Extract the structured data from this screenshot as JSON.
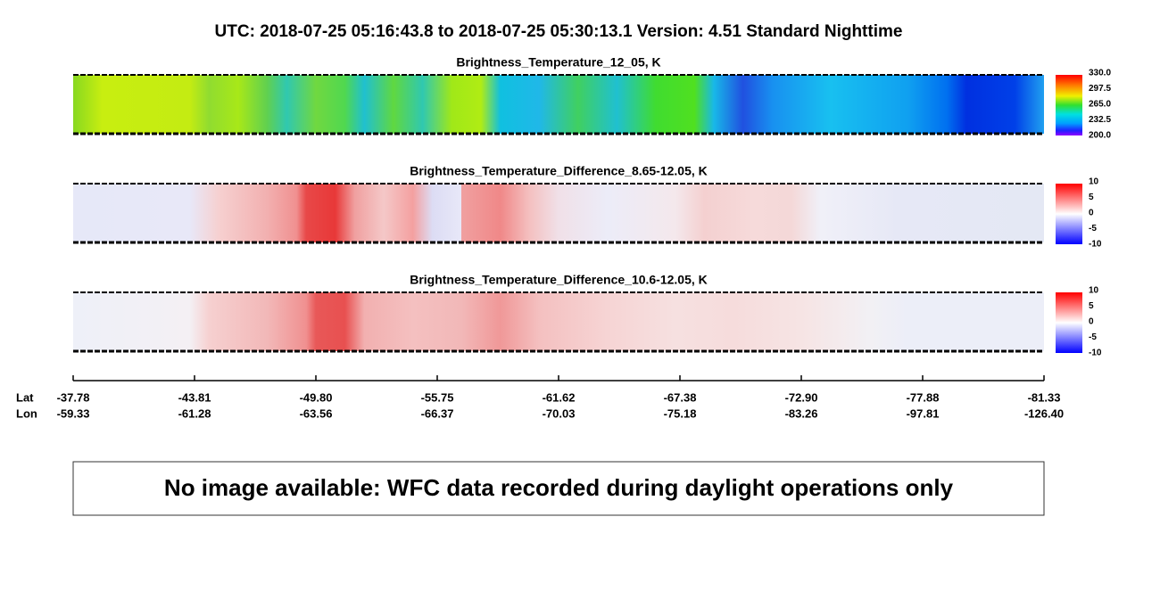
{
  "title": "UTC:  2018-07-25   05:16:43.8  to  2018-07-25   05:30:13.1    Version: 4.51  Standard Nighttime",
  "panels": [
    {
      "title": "Brightness_Temperature_12_05, K",
      "colorbar_ticks": [
        "330.0",
        "297.5",
        "265.0",
        "232.5",
        "200.0"
      ]
    },
    {
      "title": "Brightness_Temperature_Difference_8.65-12.05, K",
      "colorbar_ticks": [
        "10",
        "5",
        "0",
        "-5",
        "-10"
      ]
    },
    {
      "title": "Brightness_Temperature_Difference_10.6-12.05, K",
      "colorbar_ticks": [
        "10",
        "5",
        "0",
        "-5",
        "-10"
      ]
    }
  ],
  "axis": {
    "lat_label": "Lat",
    "lon_label": "Lon",
    "lat": [
      "-37.78",
      "-43.81",
      "-49.80",
      "-55.75",
      "-61.62",
      "-67.38",
      "-72.90",
      "-77.88",
      "-81.33"
    ],
    "lon": [
      "-59.33",
      "-61.28",
      "-63.56",
      "-66.37",
      "-70.03",
      "-75.18",
      "-83.26",
      "-97.81",
      "-126.40"
    ]
  },
  "message": "No image available: WFC data recorded during daylight operations only"
}
